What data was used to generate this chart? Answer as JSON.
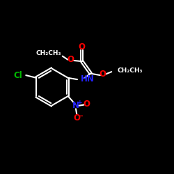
{
  "background_color": "#000000",
  "bond_color": "#ffffff",
  "O_color": "#ff0000",
  "N_color": "#2222ff",
  "Cl_color": "#00bb00",
  "lw": 1.5,
  "fs": 8.5,
  "xlim": [
    0,
    10
  ],
  "ylim": [
    0,
    10
  ]
}
